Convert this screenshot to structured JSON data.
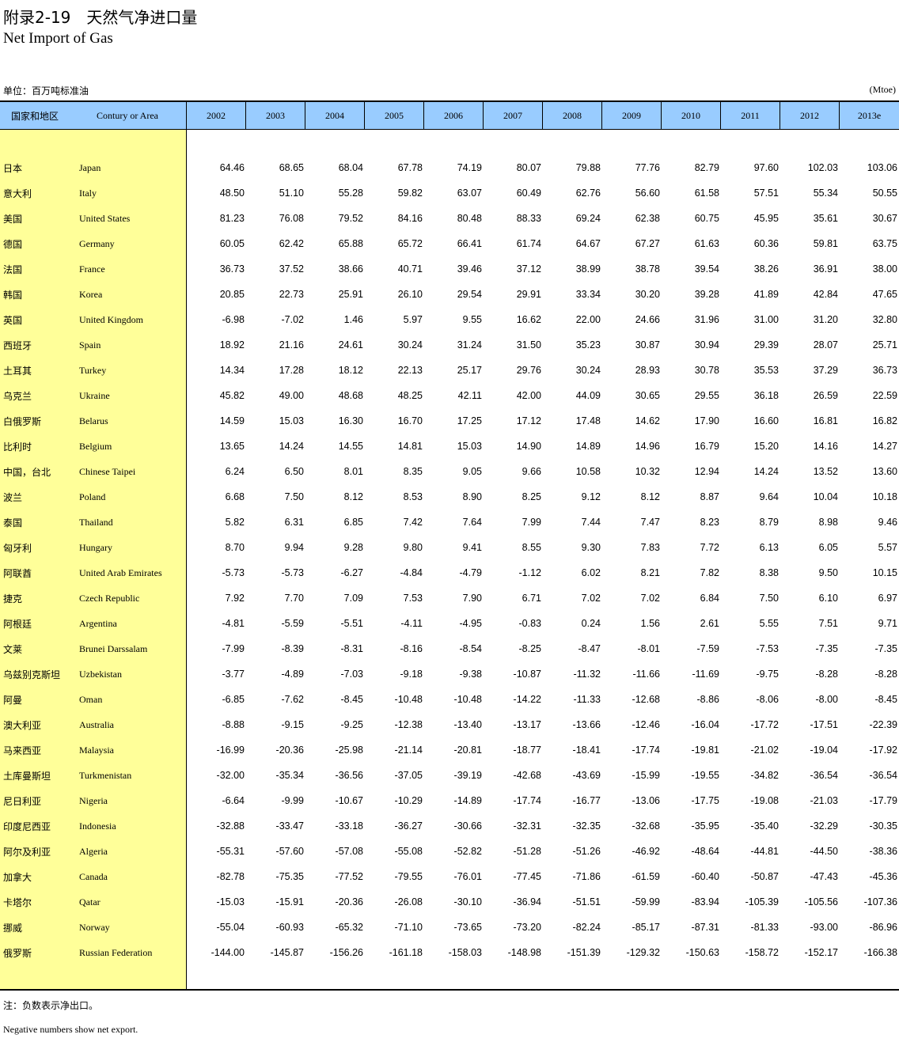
{
  "title_cn": "附录2-19　天然气净进口量",
  "title_en": "Net Import of Gas",
  "unit_cn": "单位：百万吨标准油",
  "unit_en": "(Mtoe)",
  "header": {
    "country_cn": "国家和地区",
    "country_en": "Contury or Area",
    "years": [
      "2002",
      "2003",
      "2004",
      "2005",
      "2006",
      "2007",
      "2008",
      "2009",
      "2010",
      "2011",
      "2012",
      "2013e"
    ]
  },
  "rows": [
    {
      "cn": "日本",
      "en": "Japan",
      "v": [
        "64.46",
        "68.65",
        "68.04",
        "67.78",
        "74.19",
        "80.07",
        "79.88",
        "77.76",
        "82.79",
        "97.60",
        "102.03",
        "103.06"
      ]
    },
    {
      "cn": "意大利",
      "en": "Italy",
      "v": [
        "48.50",
        "51.10",
        "55.28",
        "59.82",
        "63.07",
        "60.49",
        "62.76",
        "56.60",
        "61.58",
        "57.51",
        "55.34",
        "50.55"
      ]
    },
    {
      "cn": "美国",
      "en": "United States",
      "v": [
        "81.23",
        "76.08",
        "79.52",
        "84.16",
        "80.48",
        "88.33",
        "69.24",
        "62.38",
        "60.75",
        "45.95",
        "35.61",
        "30.67"
      ]
    },
    {
      "cn": "德国",
      "en": "Germany",
      "v": [
        "60.05",
        "62.42",
        "65.88",
        "65.72",
        "66.41",
        "61.74",
        "64.67",
        "67.27",
        "61.63",
        "60.36",
        "59.81",
        "63.75"
      ]
    },
    {
      "cn": "法国",
      "en": "France",
      "v": [
        "36.73",
        "37.52",
        "38.66",
        "40.71",
        "39.46",
        "37.12",
        "38.99",
        "38.78",
        "39.54",
        "38.26",
        "36.91",
        "38.00"
      ]
    },
    {
      "cn": "韩国",
      "en": "Korea",
      "v": [
        "20.85",
        "22.73",
        "25.91",
        "26.10",
        "29.54",
        "29.91",
        "33.34",
        "30.20",
        "39.28",
        "41.89",
        "42.84",
        "47.65"
      ]
    },
    {
      "cn": "英国",
      "en": "United Kingdom",
      "v": [
        "-6.98",
        "-7.02",
        "1.46",
        "5.97",
        "9.55",
        "16.62",
        "22.00",
        "24.66",
        "31.96",
        "31.00",
        "31.20",
        "32.80"
      ]
    },
    {
      "cn": "西班牙",
      "en": "Spain",
      "v": [
        "18.92",
        "21.16",
        "24.61",
        "30.24",
        "31.24",
        "31.50",
        "35.23",
        "30.87",
        "30.94",
        "29.39",
        "28.07",
        "25.71"
      ]
    },
    {
      "cn": "土耳其",
      "en": "Turkey",
      "v": [
        "14.34",
        "17.28",
        "18.12",
        "22.13",
        "25.17",
        "29.76",
        "30.24",
        "28.93",
        "30.78",
        "35.53",
        "37.29",
        "36.73"
      ]
    },
    {
      "cn": "乌克兰",
      "en": "Ukraine",
      "v": [
        "45.82",
        "49.00",
        "48.68",
        "48.25",
        "42.11",
        "42.00",
        "44.09",
        "30.65",
        "29.55",
        "36.18",
        "26.59",
        "22.59"
      ]
    },
    {
      "cn": "白俄罗斯",
      "en": "Belarus",
      "v": [
        "14.59",
        "15.03",
        "16.30",
        "16.70",
        "17.25",
        "17.12",
        "17.48",
        "14.62",
        "17.90",
        "16.60",
        "16.81",
        "16.82"
      ]
    },
    {
      "cn": "比利时",
      "en": "Belgium",
      "v": [
        "13.65",
        "14.24",
        "14.55",
        "14.81",
        "15.03",
        "14.90",
        "14.89",
        "14.96",
        "16.79",
        "15.20",
        "14.16",
        "14.27"
      ]
    },
    {
      "cn": "中国，台北",
      "en": "Chinese Taipei",
      "v": [
        "6.24",
        "6.50",
        "8.01",
        "8.35",
        "9.05",
        "9.66",
        "10.58",
        "10.32",
        "12.94",
        "14.24",
        "13.52",
        "13.60"
      ]
    },
    {
      "cn": "波兰",
      "en": "Poland",
      "v": [
        "6.68",
        "7.50",
        "8.12",
        "8.53",
        "8.90",
        "8.25",
        "9.12",
        "8.12",
        "8.87",
        "9.64",
        "10.04",
        "10.18"
      ]
    },
    {
      "cn": "泰国",
      "en": "Thailand",
      "v": [
        "5.82",
        "6.31",
        "6.85",
        "7.42",
        "7.64",
        "7.99",
        "7.44",
        "7.47",
        "8.23",
        "8.79",
        "8.98",
        "9.46"
      ]
    },
    {
      "cn": "匈牙利",
      "en": "Hungary",
      "v": [
        "8.70",
        "9.94",
        "9.28",
        "9.80",
        "9.41",
        "8.55",
        "9.30",
        "7.83",
        "7.72",
        "6.13",
        "6.05",
        "5.57"
      ]
    },
    {
      "cn": "阿联酋",
      "en": "United Arab Emirates",
      "v": [
        "-5.73",
        "-5.73",
        "-6.27",
        "-4.84",
        "-4.79",
        "-1.12",
        "6.02",
        "8.21",
        "7.82",
        "8.38",
        "9.50",
        "10.15"
      ]
    },
    {
      "cn": "捷克",
      "en": "Czech Republic",
      "v": [
        "7.92",
        "7.70",
        "7.09",
        "7.53",
        "7.90",
        "6.71",
        "7.02",
        "7.02",
        "6.84",
        "7.50",
        "6.10",
        "6.97"
      ]
    },
    {
      "cn": "阿根廷",
      "en": "Argentina",
      "v": [
        "-4.81",
        "-5.59",
        "-5.51",
        "-4.11",
        "-4.95",
        "-0.83",
        "0.24",
        "1.56",
        "2.61",
        "5.55",
        "7.51",
        "9.71"
      ]
    },
    {
      "cn": "文莱",
      "en": "Brunei Darssalam",
      "v": [
        "-7.99",
        "-8.39",
        "-8.31",
        "-8.16",
        "-8.54",
        "-8.25",
        "-8.47",
        "-8.01",
        "-7.59",
        "-7.53",
        "-7.35",
        "-7.35"
      ]
    },
    {
      "cn": "乌兹别克斯坦",
      "en": "Uzbekistan",
      "v": [
        "-3.77",
        "-4.89",
        "-7.03",
        "-9.18",
        "-9.38",
        "-10.87",
        "-11.32",
        "-11.66",
        "-11.69",
        "-9.75",
        "-8.28",
        "-8.28"
      ]
    },
    {
      "cn": "阿曼",
      "en": "Oman",
      "v": [
        "-6.85",
        "-7.62",
        "-8.45",
        "-10.48",
        "-10.48",
        "-14.22",
        "-11.33",
        "-12.68",
        "-8.86",
        "-8.06",
        "-8.00",
        "-8.45"
      ]
    },
    {
      "cn": "澳大利亚",
      "en": "Australia",
      "v": [
        "-8.88",
        "-9.15",
        "-9.25",
        "-12.38",
        "-13.40",
        "-13.17",
        "-13.66",
        "-12.46",
        "-16.04",
        "-17.72",
        "-17.51",
        "-22.39"
      ]
    },
    {
      "cn": "马来西亚",
      "en": "Malaysia",
      "v": [
        "-16.99",
        "-20.36",
        "-25.98",
        "-21.14",
        "-20.81",
        "-18.77",
        "-18.41",
        "-17.74",
        "-19.81",
        "-21.02",
        "-19.04",
        "-17.92"
      ]
    },
    {
      "cn": "土库曼斯坦",
      "en": "Turkmenistan",
      "v": [
        "-32.00",
        "-35.34",
        "-36.56",
        "-37.05",
        "-39.19",
        "-42.68",
        "-43.69",
        "-15.99",
        "-19.55",
        "-34.82",
        "-36.54",
        "-36.54"
      ]
    },
    {
      "cn": "尼日利亚",
      "en": "Nigeria",
      "v": [
        "-6.64",
        "-9.99",
        "-10.67",
        "-10.29",
        "-14.89",
        "-17.74",
        "-16.77",
        "-13.06",
        "-17.75",
        "-19.08",
        "-21.03",
        "-17.79"
      ]
    },
    {
      "cn": "印度尼西亚",
      "en": "Indonesia",
      "v": [
        "-32.88",
        "-33.47",
        "-33.18",
        "-36.27",
        "-30.66",
        "-32.31",
        "-32.35",
        "-32.68",
        "-35.95",
        "-35.40",
        "-32.29",
        "-30.35"
      ]
    },
    {
      "cn": "阿尔及利亚",
      "en": "Algeria",
      "v": [
        "-55.31",
        "-57.60",
        "-57.08",
        "-55.08",
        "-52.82",
        "-51.28",
        "-51.26",
        "-46.92",
        "-48.64",
        "-44.81",
        "-44.50",
        "-38.36"
      ]
    },
    {
      "cn": "加拿大",
      "en": "Canada",
      "v": [
        "-82.78",
        "-75.35",
        "-77.52",
        "-79.55",
        "-76.01",
        "-77.45",
        "-71.86",
        "-61.59",
        "-60.40",
        "-50.87",
        "-47.43",
        "-45.36"
      ]
    },
    {
      "cn": "卡塔尔",
      "en": "Qatar",
      "v": [
        "-15.03",
        "-15.91",
        "-20.36",
        "-26.08",
        "-30.10",
        "-36.94",
        "-51.51",
        "-59.99",
        "-83.94",
        "-105.39",
        "-105.56",
        "-107.36"
      ]
    },
    {
      "cn": "挪威",
      "en": "Norway",
      "v": [
        "-55.04",
        "-60.93",
        "-65.32",
        "-71.10",
        "-73.65",
        "-73.20",
        "-82.24",
        "-85.17",
        "-87.31",
        "-81.33",
        "-93.00",
        "-86.96"
      ]
    },
    {
      "cn": "俄罗斯",
      "en": "Russian Federation",
      "v": [
        "-144.00",
        "-145.87",
        "-156.26",
        "-161.18",
        "-158.03",
        "-148.98",
        "-151.39",
        "-129.32",
        "-150.63",
        "-158.72",
        "-152.17",
        "-166.38"
      ]
    }
  ],
  "note_cn": "注：负数表示净出口。",
  "note_en": "Negative numbers show net export."
}
